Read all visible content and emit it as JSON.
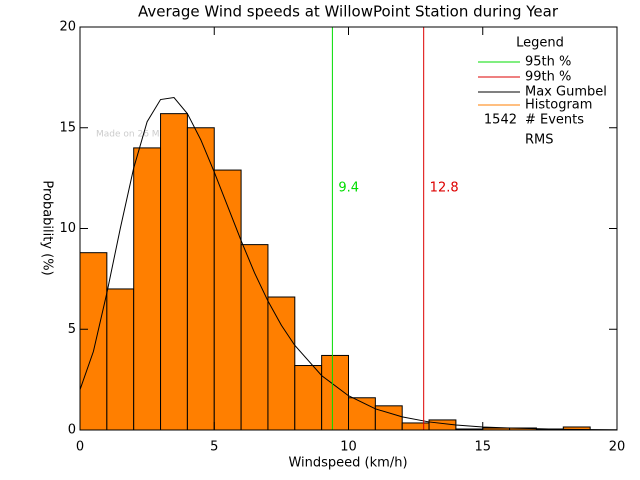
{
  "chart_data": {
    "type": "histogram",
    "title": "Average Wind speeds at WillowPoint Station during Year",
    "x_label": "Windspeed (km/h)",
    "y_label": "Probability (%)",
    "bins": [
      0,
      1,
      2,
      3,
      4,
      5,
      6,
      7,
      8,
      9,
      10,
      11,
      12,
      13,
      14,
      15,
      16,
      17,
      18,
      19,
      20
    ],
    "values": [
      8.8,
      7.0,
      14.0,
      15.7,
      15.0,
      12.9,
      9.2,
      6.6,
      3.2,
      3.7,
      1.6,
      1.2,
      0.35,
      0.5,
      0.05,
      0.1,
      0.1,
      0.05,
      0.15,
      0
    ],
    "color": "#ff7f00",
    "xlim": [
      0,
      20
    ],
    "ylim": [
      0,
      20
    ],
    "xticks": [
      0,
      5,
      10,
      15,
      20
    ],
    "yticks": [
      0,
      5,
      10,
      15,
      20
    ],
    "curve": {
      "name": "Max Gumbel",
      "color": "#000000",
      "x": [
        0,
        0.5,
        1,
        1.5,
        2,
        2.5,
        3,
        3.5,
        4,
        4.5,
        5,
        5.5,
        6,
        6.5,
        7,
        7.5,
        8,
        9,
        10,
        11,
        12,
        13,
        14,
        15,
        16,
        18,
        20
      ],
      "values": [
        2.0,
        3.9,
        6.8,
        10.0,
        13.0,
        15.3,
        16.4,
        16.5,
        15.7,
        14.4,
        12.8,
        11.1,
        9.4,
        7.8,
        6.4,
        5.2,
        4.2,
        2.7,
        1.7,
        1.05,
        0.65,
        0.4,
        0.25,
        0.15,
        0.1,
        0.03,
        0.01
      ]
    },
    "markers": [
      {
        "name": "95th %",
        "value": 9.4,
        "color": "#00dd00"
      },
      {
        "name": "99th %",
        "value": 12.8,
        "color": "#dd0000"
      }
    ],
    "legend": {
      "title": "Legend",
      "histogram": "Histogram",
      "events": 1542,
      "events_label": "# Events",
      "rms": "RMS"
    },
    "watermark": "Made on 26 Mar 2025"
  }
}
